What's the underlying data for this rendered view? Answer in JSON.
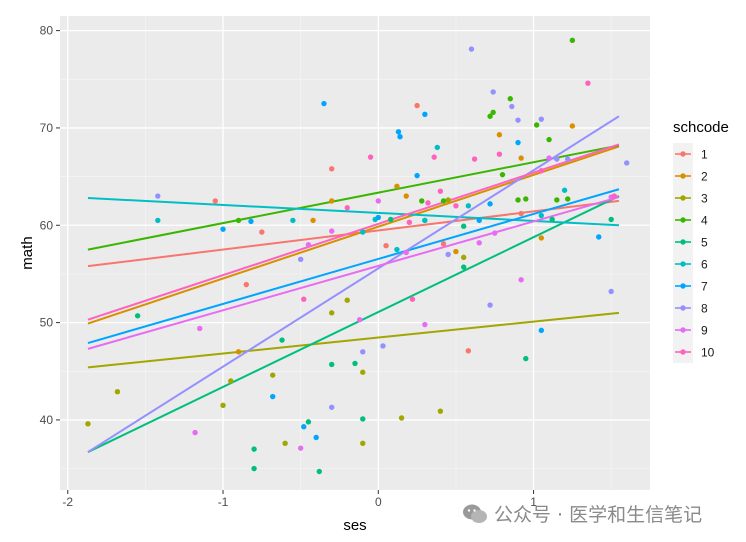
{
  "chart_data": {
    "type": "scatter",
    "title": "",
    "xlabel": "ses",
    "ylabel": "math",
    "xlim": [
      -2.05,
      1.75
    ],
    "ylim": [
      32.8,
      81.5
    ],
    "x_ticks": [
      -2,
      -1,
      0,
      1
    ],
    "y_ticks": [
      40,
      50,
      60,
      70,
      80
    ],
    "grid": true,
    "legend_title": "schcode",
    "legend_position": "right",
    "series": [
      {
        "name": "1",
        "color": "#F8766D",
        "line": [
          [
            -1.87,
            55.8
          ],
          [
            1.55,
            62.5
          ]
        ],
        "points": [
          [
            -1.05,
            62.5
          ],
          [
            -0.85,
            53.9
          ],
          [
            -0.3,
            65.8
          ],
          [
            0.05,
            57.9
          ],
          [
            0.25,
            72.3
          ],
          [
            0.58,
            47.1
          ],
          [
            0.92,
            61.2
          ],
          [
            -0.75,
            59.3
          ],
          [
            0.42,
            58.1
          ]
        ]
      },
      {
        "name": "2",
        "color": "#D89000",
        "line": [
          [
            -1.87,
            49.9
          ],
          [
            1.55,
            68.1
          ]
        ],
        "points": [
          [
            -0.9,
            47.0
          ],
          [
            -0.42,
            60.5
          ],
          [
            0.12,
            64.0
          ],
          [
            0.5,
            57.3
          ],
          [
            0.78,
            69.3
          ],
          [
            0.92,
            66.9
          ],
          [
            1.05,
            58.7
          ],
          [
            1.25,
            70.2
          ],
          [
            -0.3,
            62.5
          ],
          [
            0.18,
            63.0
          ]
        ]
      },
      {
        "name": "3",
        "color": "#A3A500",
        "line": [
          [
            -1.87,
            45.4
          ],
          [
            1.55,
            51.0
          ]
        ],
        "points": [
          [
            -1.87,
            39.6
          ],
          [
            -1.68,
            42.9
          ],
          [
            -1.0,
            41.5
          ],
          [
            -0.95,
            44.0
          ],
          [
            -0.68,
            44.6
          ],
          [
            -0.6,
            37.6
          ],
          [
            -0.3,
            51.0
          ],
          [
            -0.2,
            52.3
          ],
          [
            -0.1,
            44.9
          ],
          [
            -0.1,
            37.6
          ],
          [
            0.15,
            40.2
          ],
          [
            0.4,
            40.9
          ],
          [
            0.55,
            56.7
          ],
          [
            0.45,
            62.6
          ]
        ]
      },
      {
        "name": "4",
        "color": "#39B600",
        "line": [
          [
            -1.87,
            57.5
          ],
          [
            1.55,
            68.2
          ]
        ],
        "points": [
          [
            -0.9,
            60.5
          ],
          [
            0.28,
            62.5
          ],
          [
            0.42,
            62.5
          ],
          [
            0.72,
            71.2
          ],
          [
            0.74,
            71.6
          ],
          [
            0.85,
            73.0
          ],
          [
            0.95,
            62.7
          ],
          [
            1.02,
            70.3
          ],
          [
            1.15,
            62.6
          ],
          [
            1.22,
            62.7
          ],
          [
            1.25,
            79.0
          ],
          [
            1.1,
            68.8
          ],
          [
            0.8,
            65.2
          ],
          [
            0.9,
            62.6
          ]
        ]
      },
      {
        "name": "5",
        "color": "#00BF7D",
        "line": [
          [
            -1.87,
            36.7
          ],
          [
            1.55,
            63.0
          ]
        ],
        "points": [
          [
            -1.55,
            50.7
          ],
          [
            -0.8,
            37.0
          ],
          [
            -0.8,
            35.0
          ],
          [
            -0.62,
            48.2
          ],
          [
            -0.45,
            39.8
          ],
          [
            -0.38,
            34.7
          ],
          [
            -0.3,
            45.7
          ],
          [
            -0.15,
            45.8
          ],
          [
            -0.1,
            40.1
          ],
          [
            0.3,
            60.5
          ],
          [
            0.55,
            59.9
          ],
          [
            0.95,
            46.3
          ],
          [
            1.12,
            60.6
          ],
          [
            1.5,
            60.6
          ],
          [
            0.08,
            60.6
          ],
          [
            0.55,
            55.7
          ]
        ]
      },
      {
        "name": "6",
        "color": "#00BFC4",
        "line": [
          [
            -1.87,
            62.8
          ],
          [
            1.55,
            60.0
          ]
        ],
        "points": [
          [
            -1.42,
            60.5
          ],
          [
            -0.55,
            60.5
          ],
          [
            -0.1,
            59.3
          ],
          [
            0.12,
            57.5
          ],
          [
            0.3,
            60.5
          ],
          [
            0.38,
            68.0
          ],
          [
            0.58,
            62.0
          ],
          [
            1.05,
            61.0
          ],
          [
            1.2,
            63.6
          ],
          [
            -0.02,
            60.6
          ]
        ]
      },
      {
        "name": "7",
        "color": "#00A5FF",
        "line": [
          [
            -1.87,
            47.9
          ],
          [
            1.55,
            63.7
          ]
        ],
        "points": [
          [
            -1.0,
            59.6
          ],
          [
            -0.82,
            60.4
          ],
          [
            -0.68,
            42.4
          ],
          [
            -0.48,
            39.3
          ],
          [
            -0.4,
            38.2
          ],
          [
            -0.35,
            72.5
          ],
          [
            0.0,
            60.8
          ],
          [
            0.13,
            69.6
          ],
          [
            0.14,
            69.1
          ],
          [
            0.25,
            65.1
          ],
          [
            0.3,
            71.4
          ],
          [
            0.65,
            60.5
          ],
          [
            0.72,
            62.2
          ],
          [
            1.05,
            49.2
          ],
          [
            1.42,
            58.8
          ],
          [
            0.9,
            68.5
          ]
        ]
      },
      {
        "name": "8",
        "color": "#9590FF",
        "line": [
          [
            -1.87,
            36.7
          ],
          [
            1.55,
            71.2
          ]
        ],
        "points": [
          [
            -1.42,
            63.0
          ],
          [
            -0.5,
            56.5
          ],
          [
            -0.3,
            41.3
          ],
          [
            -0.1,
            47.0
          ],
          [
            0.03,
            47.6
          ],
          [
            0.6,
            78.1
          ],
          [
            0.72,
            51.8
          ],
          [
            0.74,
            73.7
          ],
          [
            0.86,
            72.2
          ],
          [
            0.9,
            70.8
          ],
          [
            1.05,
            70.9
          ],
          [
            1.15,
            66.8
          ],
          [
            1.22,
            66.8
          ],
          [
            1.6,
            66.4
          ],
          [
            1.5,
            53.2
          ],
          [
            0.45,
            57.0
          ]
        ]
      },
      {
        "name": "9",
        "color": "#E76BF3",
        "line": [
          [
            -1.87,
            47.3
          ],
          [
            1.55,
            62.9
          ]
        ],
        "points": [
          [
            -1.18,
            38.7
          ],
          [
            -1.15,
            49.4
          ],
          [
            -0.5,
            37.1
          ],
          [
            -0.45,
            58.0
          ],
          [
            -0.3,
            59.4
          ],
          [
            -0.12,
            50.3
          ],
          [
            0.0,
            62.5
          ],
          [
            0.18,
            57.2
          ],
          [
            0.3,
            49.8
          ],
          [
            0.65,
            58.2
          ],
          [
            0.92,
            54.4
          ],
          [
            1.1,
            66.9
          ],
          [
            1.5,
            62.9
          ],
          [
            0.75,
            59.2
          ]
        ]
      },
      {
        "name": "10",
        "color": "#FF62BC",
        "line": [
          [
            -1.87,
            50.3
          ],
          [
            1.55,
            68.3
          ]
        ],
        "points": [
          [
            -0.48,
            52.4
          ],
          [
            -0.2,
            61.8
          ],
          [
            -0.05,
            67.0
          ],
          [
            0.22,
            52.4
          ],
          [
            0.32,
            62.3
          ],
          [
            0.36,
            67.0
          ],
          [
            0.4,
            63.5
          ],
          [
            0.62,
            66.8
          ],
          [
            0.78,
            67.3
          ],
          [
            1.35,
            74.6
          ],
          [
            1.52,
            63.0
          ],
          [
            1.05,
            65.6
          ],
          [
            0.5,
            62.0
          ],
          [
            0.2,
            60.3
          ]
        ]
      }
    ]
  },
  "watermark": {
    "icon": "wechat-icon",
    "text": "公众号 · 医学和生信笔记"
  }
}
